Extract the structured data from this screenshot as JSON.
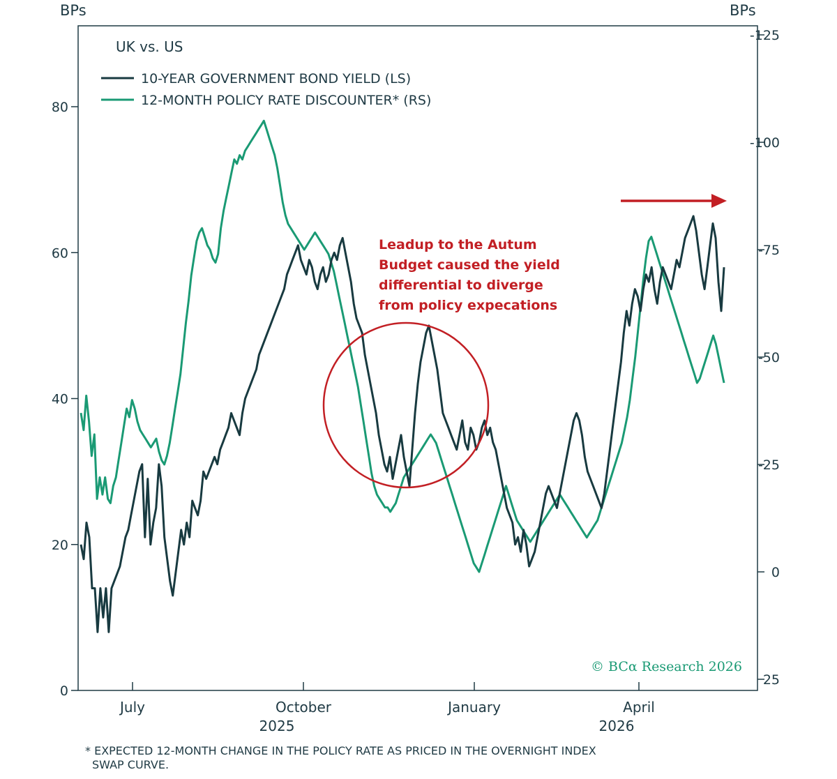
{
  "chart_data": {
    "type": "line",
    "title": "UK vs. US",
    "y_left_unit": "BPs",
    "y_right_unit": "BPs",
    "ylim_left": [
      0,
      90
    ],
    "ylim_right": [
      25,
      -130
    ],
    "right_axis_inverted": true,
    "yticks_left": [
      "0",
      "20",
      "40",
      "60",
      "80"
    ],
    "yticks_right": [
      "25",
      "0",
      "-25",
      "-50",
      "-75",
      "-100",
      "-125"
    ],
    "xticks": [
      "July",
      "October",
      "January",
      "April"
    ],
    "year_labels": [
      "2025",
      "2026"
    ],
    "grid": false,
    "legend_placement": "top-left",
    "series": [
      {
        "name": "10-YEAR GOVERNMENT BOND YIELD (LS)",
        "axis": "left",
        "color": "#183a40",
        "values": [
          20,
          18,
          23,
          21,
          14,
          14,
          8,
          14,
          10,
          14,
          8,
          14,
          15,
          16,
          17,
          19,
          21,
          22,
          24,
          26,
          28,
          30,
          31,
          21,
          29,
          20,
          23,
          25,
          31,
          28,
          21,
          18,
          15,
          13,
          16,
          19,
          22,
          20,
          23,
          21,
          26,
          25,
          24,
          26,
          30,
          29,
          30,
          31,
          32,
          31,
          33,
          34,
          35,
          36,
          38,
          37,
          36,
          35,
          38,
          40,
          41,
          42,
          43,
          44,
          46,
          47,
          48,
          49,
          50,
          51,
          52,
          53,
          54,
          55,
          57,
          58,
          59,
          60,
          61,
          59,
          58,
          57,
          59,
          58,
          56,
          55,
          57,
          58,
          56,
          57,
          59,
          60,
          59,
          61,
          62,
          60,
          58,
          56,
          53,
          51,
          50,
          49,
          46,
          44,
          42,
          40,
          38,
          35,
          33,
          31,
          30,
          32,
          29,
          31,
          33,
          35,
          32,
          30,
          28,
          33,
          38,
          42,
          45,
          47,
          49,
          50,
          48,
          46,
          44,
          41,
          38,
          37,
          36,
          35,
          34,
          33,
          35,
          37,
          34,
          33,
          36,
          35,
          33,
          34,
          36,
          37,
          35,
          36,
          34,
          33,
          31,
          29,
          27,
          25,
          24,
          23,
          20,
          21,
          19,
          22,
          20,
          17,
          18,
          19,
          21,
          23,
          25,
          27,
          28,
          27,
          26,
          25,
          27,
          29,
          31,
          33,
          35,
          37,
          38,
          37,
          35,
          32,
          30,
          29,
          28,
          27,
          26,
          25,
          27,
          30,
          33,
          36,
          39,
          42,
          45,
          49,
          52,
          50,
          53,
          55,
          54,
          52,
          55,
          57,
          56,
          58,
          55,
          53,
          56,
          58,
          57,
          56,
          55,
          57,
          59,
          58,
          60,
          62,
          63,
          64,
          65,
          63,
          60,
          57,
          55,
          58,
          61,
          64,
          62,
          56,
          52,
          58
        ]
      },
      {
        "name": "12-MONTH POLICY RATE DISCOUNTER* (RS)",
        "axis": "right",
        "color": "#1a9a74",
        "values": [
          -37,
          -33,
          -41,
          -35,
          -27,
          -32,
          -17,
          -22,
          -18,
          -22,
          -17,
          -16,
          -20,
          -22,
          -26,
          -30,
          -34,
          -38,
          -36,
          -40,
          -38,
          -35,
          -33,
          -32,
          -31,
          -30,
          -29,
          -30,
          -31,
          -28,
          -26,
          -25,
          -27,
          -30,
          -34,
          -38,
          -42,
          -46,
          -52,
          -58,
          -63,
          -69,
          -73,
          -77,
          -79,
          -80,
          -78,
          -76,
          -75,
          -73,
          -72,
          -74,
          -80,
          -84,
          -87,
          -90,
          -93,
          -96,
          -95,
          -97,
          -96,
          -98,
          -99,
          -100,
          -101,
          -102,
          -103,
          -104,
          -105,
          -103,
          -101,
          -99,
          -97,
          -94,
          -90,
          -86,
          -83,
          -81,
          -80,
          -79,
          -78,
          -77,
          -76,
          -75,
          -76,
          -77,
          -78,
          -79,
          -78,
          -77,
          -76,
          -75,
          -74,
          -72,
          -70,
          -67,
          -64,
          -61,
          -58,
          -55,
          -52,
          -49,
          -46,
          -43,
          -39,
          -35,
          -31,
          -27,
          -23,
          -20,
          -18,
          -17,
          -16,
          -15,
          -15,
          -14,
          -15,
          -16,
          -18,
          -20,
          -22,
          -23,
          -24,
          -25,
          -26,
          -27,
          -28,
          -29,
          -30,
          -31,
          -32,
          -31,
          -30,
          -28,
          -26,
          -24,
          -22,
          -20,
          -18,
          -16,
          -14,
          -12,
          -10,
          -8,
          -6,
          -4,
          -2,
          -1,
          0,
          -2,
          -4,
          -6,
          -8,
          -10,
          -12,
          -14,
          -16,
          -18,
          -20,
          -18,
          -16,
          -14,
          -12,
          -11,
          -10,
          -9,
          -8,
          -7,
          -8,
          -9,
          -10,
          -11,
          -12,
          -13,
          -14,
          -15,
          -16,
          -17,
          -18,
          -17,
          -16,
          -15,
          -14,
          -13,
          -12,
          -11,
          -10,
          -9,
          -8,
          -9,
          -10,
          -11,
          -12,
          -14,
          -16,
          -18,
          -20,
          -22,
          -24,
          -26,
          -28,
          -30,
          -33,
          -36,
          -40,
          -45,
          -50,
          -56,
          -62,
          -68,
          -73,
          -77,
          -78,
          -76,
          -74,
          -72,
          -70,
          -68,
          -66,
          -64,
          -62,
          -60,
          -58,
          -56,
          -54,
          -52,
          -50,
          -48,
          -46,
          -44,
          -45,
          -47,
          -49,
          -51,
          -53,
          -55,
          -53,
          -50,
          -47,
          -44
        ]
      }
    ],
    "annotations": [
      "Leadup to the Autum",
      "Budget caused the yield",
      "differential to diverge",
      "from policy expecations"
    ]
  },
  "credit": "© BCα Research 2026",
  "footnote": [
    "* EXPECTED 12-MONTH CHANGE IN THE POLICY RATE AS PRICED IN THE OVERNIGHT INDEX",
    "SWAP CURVE."
  ],
  "colors": {
    "annotation": "#c21f24",
    "frame": "#1f3a44"
  }
}
